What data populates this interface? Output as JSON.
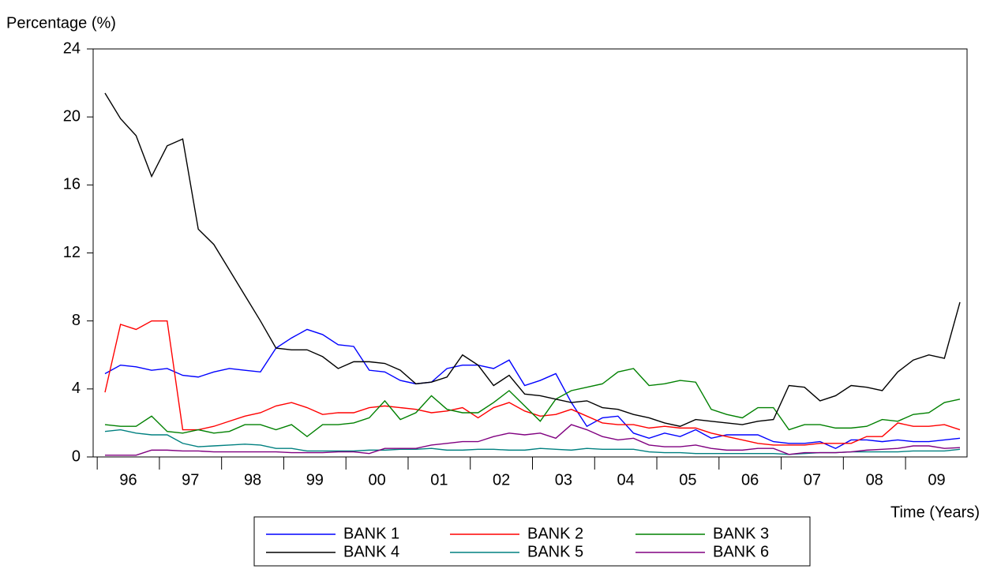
{
  "chart_data": {
    "type": "line",
    "y_label": "Percentage (%)",
    "x_label": "Time (Years)",
    "x": [
      "96",
      null,
      null,
      null,
      "97",
      null,
      null,
      null,
      "98",
      null,
      null,
      null,
      "99",
      null,
      null,
      null,
      "00",
      null,
      null,
      null,
      "01",
      null,
      null,
      null,
      "02",
      null,
      null,
      null,
      "03",
      null,
      null,
      null,
      "04",
      null,
      null,
      null,
      "05",
      null,
      null,
      null,
      "06",
      null,
      null,
      null,
      "07",
      null,
      null,
      null,
      "08",
      null,
      null,
      null,
      "09",
      null,
      null,
      null
    ],
    "ylim": [
      0,
      24
    ],
    "yticks": [
      0,
      4,
      8,
      12,
      16,
      20,
      24
    ],
    "grid": false,
    "series": [
      {
        "name": "BANK 1",
        "color": "#0000ff",
        "values": [
          4.9,
          5.4,
          5.3,
          5.1,
          5.2,
          4.8,
          4.7,
          5.0,
          5.2,
          5.1,
          5.0,
          6.4,
          7.0,
          7.5,
          7.2,
          6.6,
          6.5,
          5.1,
          5.0,
          4.5,
          4.3,
          4.4,
          5.2,
          5.4,
          5.4,
          5.2,
          5.7,
          4.2,
          4.5,
          4.9,
          3.2,
          1.8,
          2.3,
          2.4,
          1.4,
          1.1,
          1.4,
          1.2,
          1.6,
          1.1,
          1.3,
          1.3,
          1.3,
          0.9,
          0.8,
          0.8,
          0.9,
          0.5,
          1.0,
          1.0,
          0.9,
          1.0,
          0.9,
          0.9,
          1.0,
          1.1
        ]
      },
      {
        "name": "BANK 2",
        "color": "#ff0000",
        "values": [
          3.8,
          7.8,
          7.5,
          8.0,
          8.0,
          1.6,
          1.6,
          1.8,
          2.1,
          2.4,
          2.6,
          3.0,
          3.2,
          2.9,
          2.5,
          2.6,
          2.6,
          2.9,
          3.0,
          2.9,
          2.8,
          2.6,
          2.7,
          2.9,
          2.3,
          2.9,
          3.2,
          2.7,
          2.4,
          2.5,
          2.8,
          2.4,
          2.0,
          1.9,
          1.9,
          1.7,
          1.8,
          1.7,
          1.7,
          1.4,
          1.2,
          1.0,
          0.8,
          0.7,
          0.7,
          0.7,
          0.8,
          0.8,
          0.8,
          1.2,
          1.2,
          2.0,
          1.8,
          1.8,
          1.9,
          1.6
        ]
      },
      {
        "name": "BANK 3",
        "color": "#008000",
        "values": [
          1.9,
          1.8,
          1.8,
          2.4,
          1.5,
          1.4,
          1.6,
          1.4,
          1.5,
          1.9,
          1.9,
          1.6,
          1.9,
          1.2,
          1.9,
          1.9,
          2.0,
          2.3,
          3.3,
          2.2,
          2.6,
          3.6,
          2.8,
          2.6,
          2.6,
          3.2,
          3.9,
          3.0,
          2.1,
          3.4,
          3.9,
          4.1,
          4.3,
          5.0,
          5.2,
          4.2,
          4.3,
          4.5,
          4.4,
          2.8,
          2.5,
          2.3,
          2.9,
          2.9,
          1.6,
          1.9,
          1.9,
          1.7,
          1.7,
          1.8,
          2.2,
          2.1,
          2.5,
          2.6,
          3.2,
          3.4
        ]
      },
      {
        "name": "BANK 4",
        "color": "#000000",
        "values": [
          21.4,
          19.9,
          18.9,
          16.5,
          18.3,
          18.7,
          13.4,
          12.5,
          11.0,
          9.5,
          8.0,
          6.4,
          6.3,
          6.3,
          5.9,
          5.2,
          5.6,
          5.6,
          5.5,
          5.1,
          4.3,
          4.4,
          4.7,
          6.0,
          5.4,
          4.2,
          4.8,
          3.7,
          3.6,
          3.4,
          3.2,
          3.3,
          2.9,
          2.8,
          2.5,
          2.3,
          2.0,
          1.8,
          2.2,
          2.1,
          2.0,
          1.9,
          2.1,
          2.2,
          4.2,
          4.1,
          3.3,
          3.6,
          4.2,
          4.1,
          3.9,
          5.0,
          5.7,
          6.0,
          5.8,
          9.1
        ]
      },
      {
        "name": "BANK 5",
        "color": "#008080",
        "values": [
          1.5,
          1.6,
          1.4,
          1.3,
          1.3,
          0.8,
          0.6,
          0.65,
          0.7,
          0.75,
          0.7,
          0.5,
          0.5,
          0.35,
          0.35,
          0.35,
          0.35,
          0.4,
          0.4,
          0.45,
          0.45,
          0.5,
          0.4,
          0.4,
          0.45,
          0.45,
          0.4,
          0.4,
          0.5,
          0.45,
          0.4,
          0.5,
          0.45,
          0.45,
          0.45,
          0.3,
          0.25,
          0.25,
          0.2,
          0.2,
          0.2,
          0.2,
          0.2,
          0.2,
          0.15,
          0.2,
          0.25,
          0.25,
          0.3,
          0.3,
          0.3,
          0.3,
          0.35,
          0.35,
          0.35,
          0.45
        ]
      },
      {
        "name": "BANK 6",
        "color": "#800080",
        "values": [
          0.1,
          0.1,
          0.1,
          0.4,
          0.4,
          0.35,
          0.35,
          0.3,
          0.3,
          0.3,
          0.3,
          0.3,
          0.25,
          0.25,
          0.25,
          0.3,
          0.3,
          0.2,
          0.5,
          0.5,
          0.5,
          0.7,
          0.8,
          0.9,
          0.9,
          1.2,
          1.4,
          1.3,
          1.4,
          1.1,
          1.9,
          1.6,
          1.2,
          1.0,
          1.1,
          0.7,
          0.6,
          0.6,
          0.7,
          0.5,
          0.4,
          0.4,
          0.5,
          0.5,
          0.15,
          0.25,
          0.25,
          0.25,
          0.3,
          0.4,
          0.45,
          0.5,
          0.65,
          0.65,
          0.5,
          0.55
        ]
      }
    ]
  }
}
